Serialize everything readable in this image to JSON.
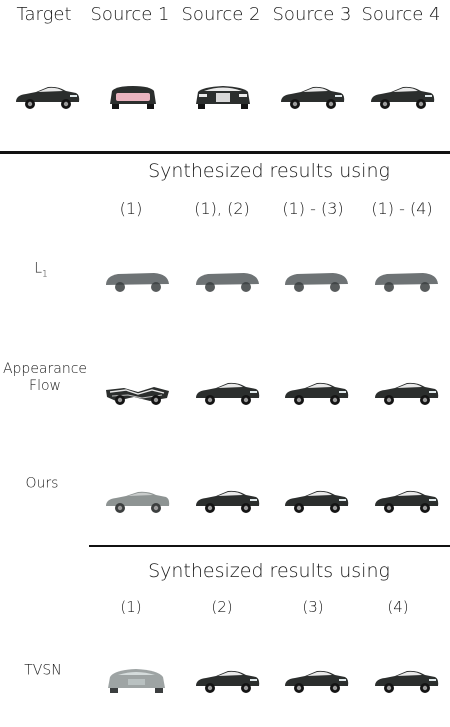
{
  "header": {
    "columns": [
      "Target",
      "Source 1",
      "Source 2",
      "Source 3",
      "Source 4"
    ]
  },
  "section1": {
    "heading": "Synthesized results using",
    "subheads": [
      "(1)",
      "(1), (2)",
      "(1) - (3)",
      "(1) - (4)"
    ],
    "rows": [
      {
        "label": "L",
        "label_sub": "1"
      },
      {
        "label": "Appearance",
        "label2": "Flow"
      },
      {
        "label": "Ours"
      }
    ]
  },
  "section2": {
    "heading": "Synthesized results using",
    "subheads": [
      "(1)",
      "(2)",
      "(3)",
      "(4)"
    ],
    "rows": [
      {
        "label": "TVSN"
      }
    ]
  },
  "colors": {
    "car_body": "#2b2e2d",
    "car_top": "#e9e9e9",
    "blurry_car": "#5e6466",
    "silver_car": "#8e9493",
    "rule": "#111111"
  }
}
